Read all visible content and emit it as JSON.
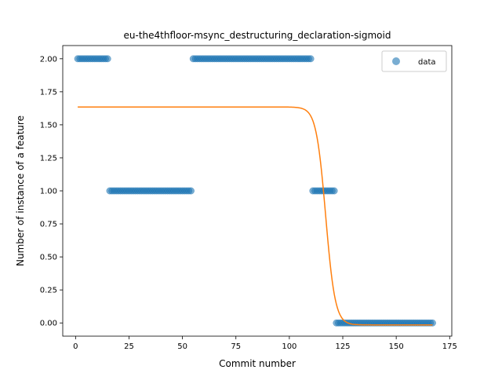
{
  "chart_data": {
    "type": "scatter",
    "title": "eu-the4thfloor-msync_destructuring_declaration-sigmoid",
    "xlabel": "Commit number",
    "ylabel": "Number of instance of a feature",
    "xlim": [
      -6,
      176
    ],
    "ylim": [
      -0.1,
      2.1
    ],
    "xticks": [
      0,
      25,
      50,
      75,
      100,
      125,
      150,
      175
    ],
    "yticks": [
      0.0,
      0.25,
      0.5,
      0.75,
      1.0,
      1.25,
      1.5,
      1.75,
      2.0
    ],
    "xtick_labels": [
      "0",
      "25",
      "50",
      "75",
      "100",
      "125",
      "150",
      "175"
    ],
    "ytick_labels": [
      "0.00",
      "0.25",
      "0.50",
      "0.75",
      "1.00",
      "1.25",
      "1.50",
      "1.75",
      "2.00"
    ],
    "legend_position": "top-right",
    "series": [
      {
        "name": "data",
        "kind": "scatter",
        "color": "#1f77b4",
        "segments": [
          {
            "x_from": 1,
            "x_to": 15,
            "y": 2
          },
          {
            "x_from": 16,
            "x_to": 54,
            "y": 1
          },
          {
            "x_from": 55,
            "x_to": 110,
            "y": 2
          },
          {
            "x_from": 111,
            "x_to": 121,
            "y": 1
          },
          {
            "x_from": 122,
            "x_to": 167,
            "y": 0
          }
        ]
      },
      {
        "kind": "line",
        "color": "#ff7f0e",
        "fit": {
          "type": "sigmoid",
          "L": 1.65,
          "x0": 117,
          "k": 0.45,
          "b": -0.015,
          "x_from": 1,
          "x_to": 167
        }
      }
    ]
  }
}
